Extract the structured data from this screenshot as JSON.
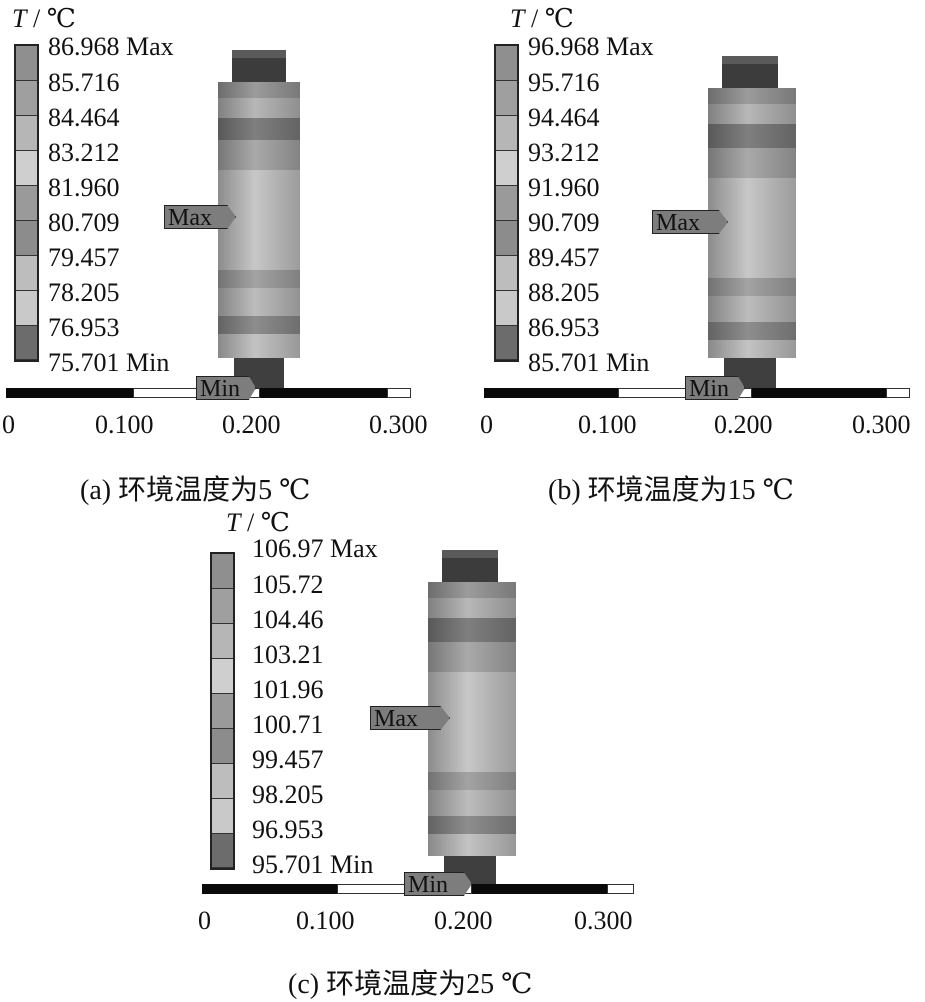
{
  "unit_label": {
    "symbol": "T",
    "rest": " / ℃"
  },
  "panels": [
    {
      "id": "a",
      "legend": [
        "86.968 Max",
        "85.716",
        "84.464",
        "83.212",
        "81.960",
        "80.709",
        "79.457",
        "78.205",
        "76.953",
        "75.701 Min"
      ],
      "max_marker": "Max",
      "min_marker": "Min",
      "scale_ticks": [
        "0",
        "0.100",
        "0.200",
        "0.300"
      ],
      "caption": "(a)  环境温度为5 ℃"
    },
    {
      "id": "b",
      "legend": [
        "96.968 Max",
        "95.716",
        "94.464",
        "93.212",
        "91.960",
        "90.709",
        "89.457",
        "88.205",
        "86.953",
        "85.701 Min"
      ],
      "max_marker": "Max",
      "min_marker": "Min",
      "scale_ticks": [
        "0",
        "0.100",
        "0.200",
        "0.300"
      ],
      "caption": "(b)  环境温度为15 ℃"
    },
    {
      "id": "c",
      "legend": [
        "106.97 Max",
        "105.72",
        "104.46",
        "103.21",
        "101.96",
        "100.71",
        "99.457",
        "98.205",
        "96.953",
        "95.701 Min"
      ],
      "max_marker": "Max",
      "min_marker": "Min",
      "scale_ticks": [
        "0",
        "0.100",
        "0.200",
        "0.300"
      ],
      "caption": "(c)  环境温度为25 ℃"
    }
  ],
  "colors": {
    "legend_bands": [
      "#8f8f8f",
      "#9f9f9f",
      "#b6b6b6",
      "#cfcfcf",
      "#9a9a9a",
      "#8c8c8c",
      "#bdbdbd",
      "#c9c9c9",
      "#a9a9a9",
      "#6c6c6c"
    ],
    "marker_fill": "#7d7d7d",
    "cylinder_dark": "#444444",
    "cylinder_light": "#d9d9d9"
  }
}
